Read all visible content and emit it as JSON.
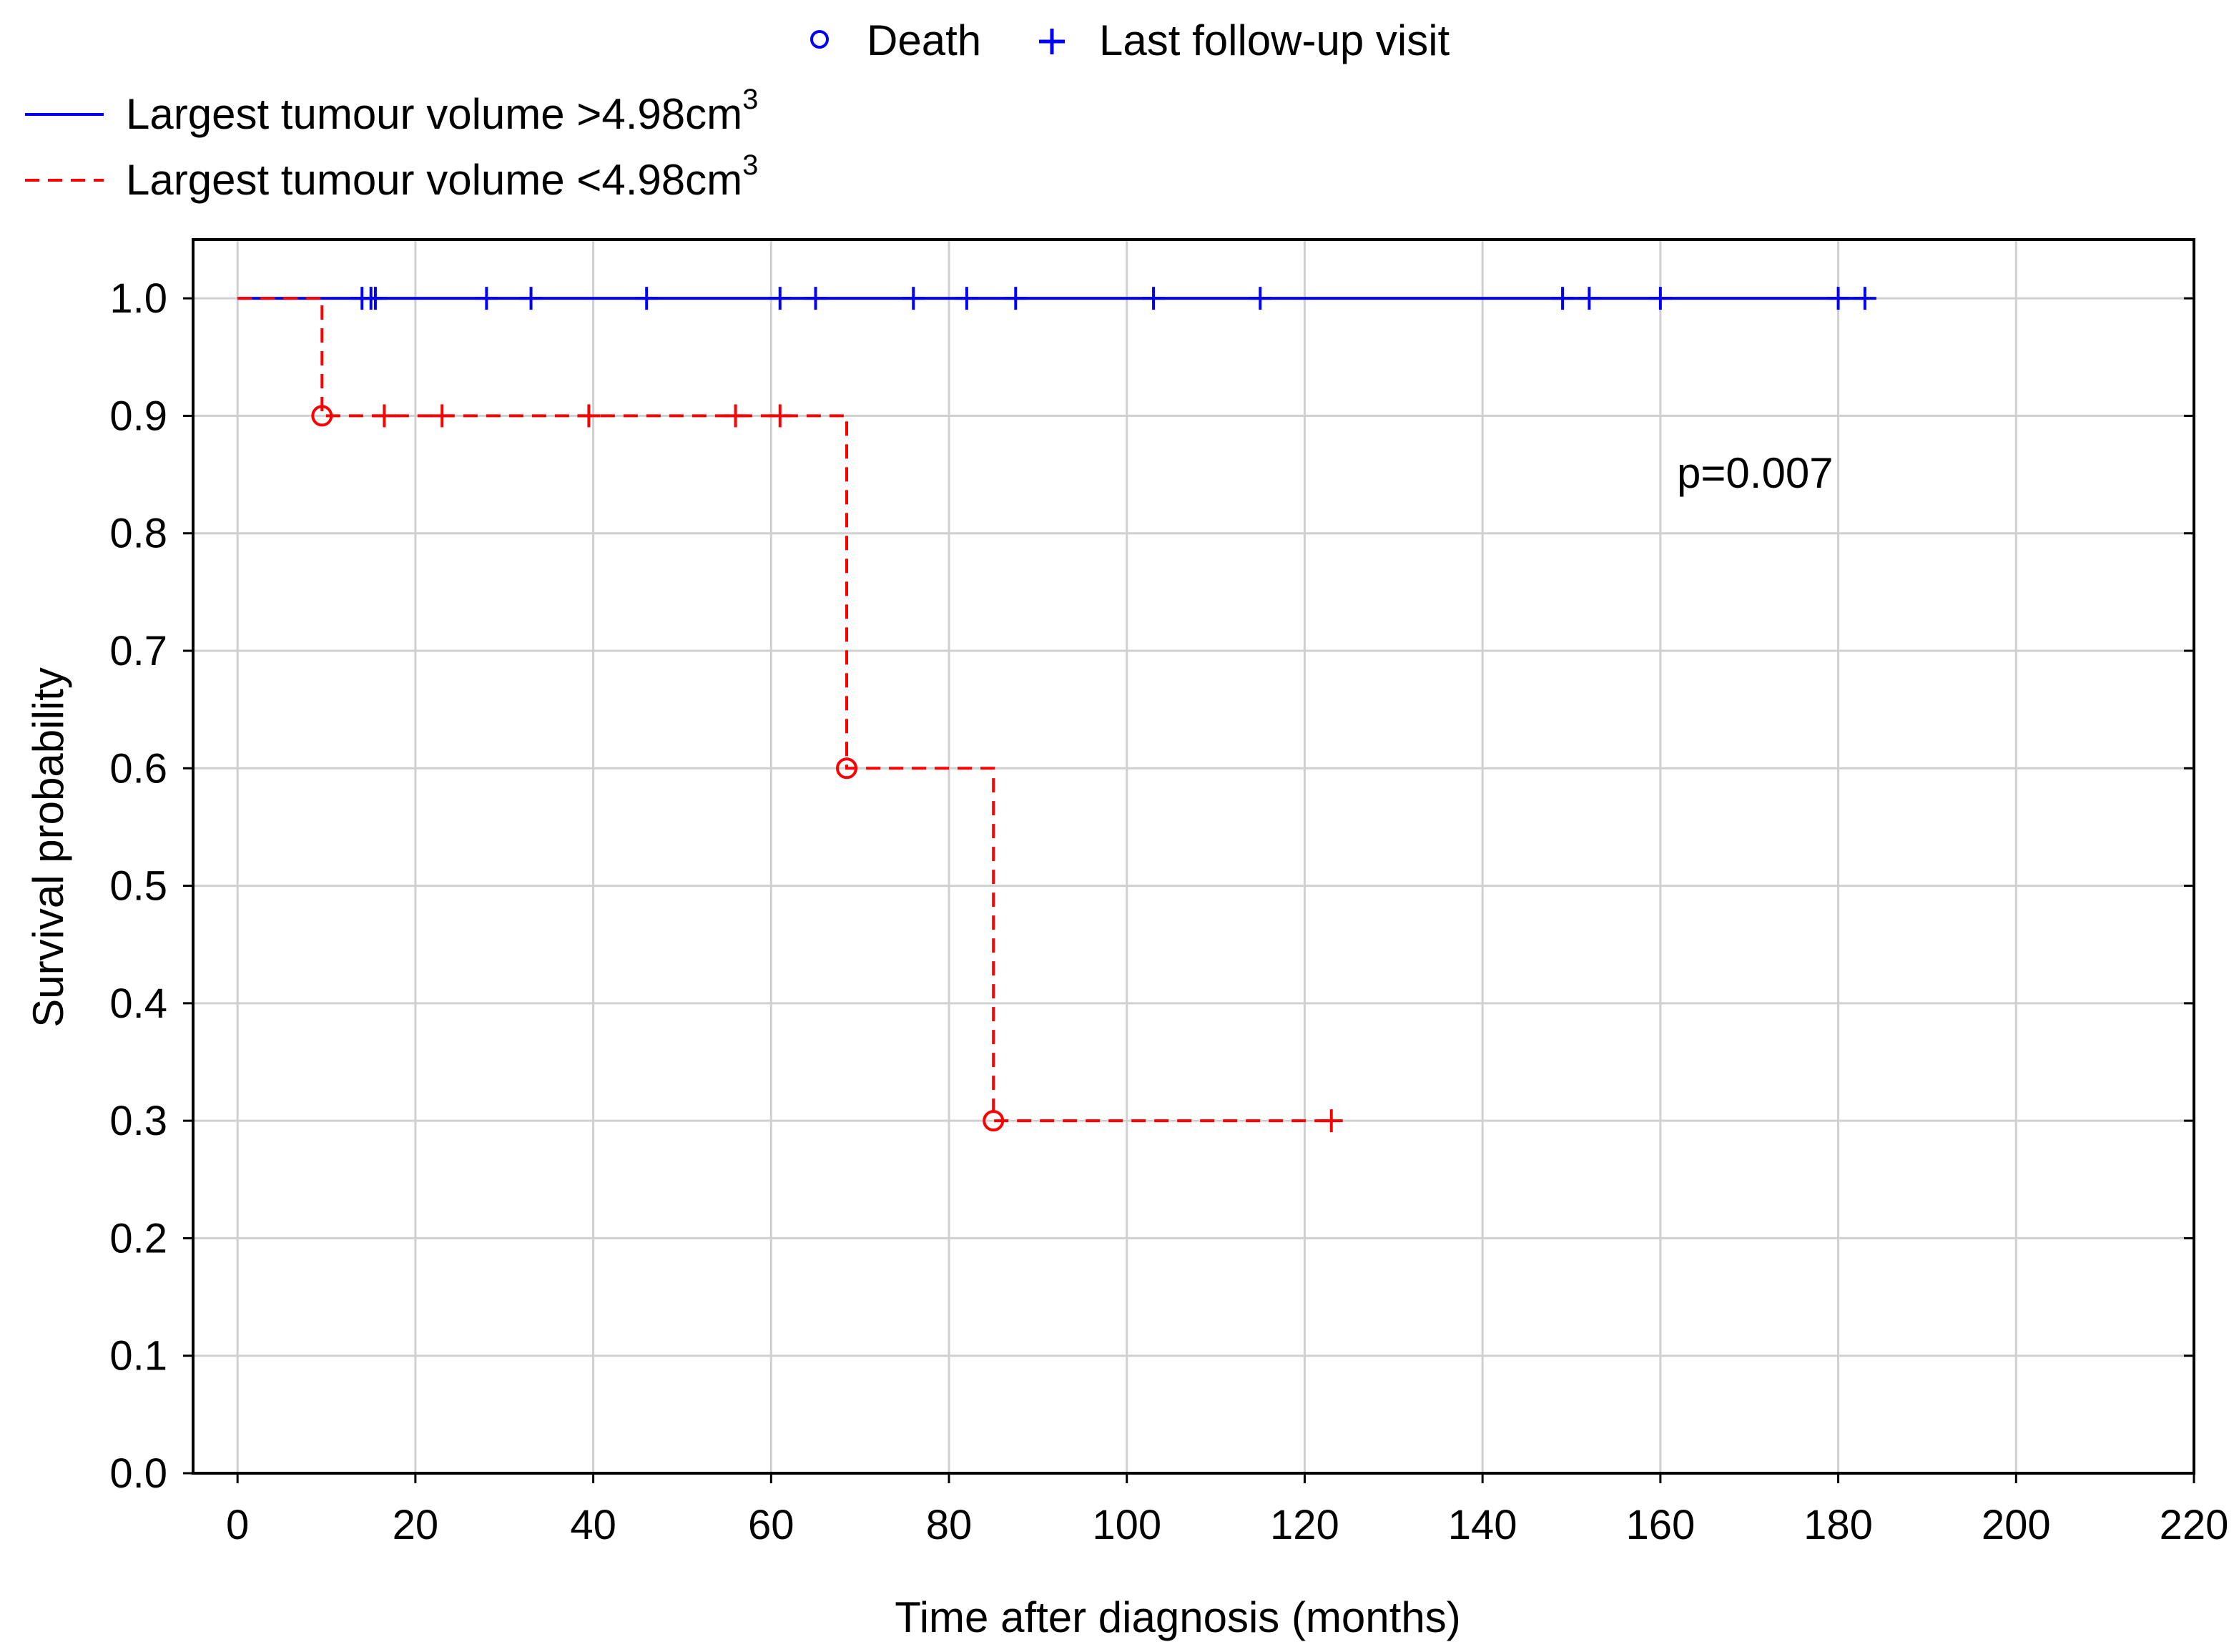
{
  "chart_data": {
    "type": "line",
    "xlabel": "Time after diagnosis (months)",
    "ylabel": "Survival probability",
    "xlim": [
      -5,
      220
    ],
    "ylim": [
      0,
      1.05
    ],
    "xticks": [
      "0",
      "20",
      "40",
      "60",
      "80",
      "100",
      "120",
      "140",
      "160",
      "180",
      "200",
      "220"
    ],
    "yticks": [
      "0.0",
      "0.1",
      "0.2",
      "0.3",
      "0.4",
      "0.5",
      "0.6",
      "0.7",
      "0.8",
      "0.9",
      "1.0"
    ],
    "grid": true,
    "annotation": "p=0.007",
    "marker_legend": [
      {
        "symbol": "circle",
        "label": "Death"
      },
      {
        "symbol": "plus",
        "label": "Last follow-up visit"
      }
    ],
    "series": [
      {
        "name": "Largest tumour volume >4.98cm",
        "superscript": "3",
        "color": "#0000ff",
        "style": "solid",
        "steps": [
          [
            0,
            1.0
          ],
          [
            183,
            1.0
          ]
        ],
        "deaths": [],
        "censored": [
          [
            14,
            1.0
          ],
          [
            15,
            1.0
          ],
          [
            15.5,
            1.0
          ],
          [
            28,
            1.0
          ],
          [
            33,
            1.0
          ],
          [
            46,
            1.0
          ],
          [
            61,
            1.0
          ],
          [
            65,
            1.0
          ],
          [
            76,
            1.0
          ],
          [
            82,
            1.0
          ],
          [
            87.5,
            1.0
          ],
          [
            103,
            1.0
          ],
          [
            115,
            1.0
          ],
          [
            149,
            1.0
          ],
          [
            152,
            1.0
          ],
          [
            160,
            1.0
          ],
          [
            180,
            1.0
          ],
          [
            183,
            1.0
          ]
        ]
      },
      {
        "name": "Largest tumour volume <4.98cm",
        "superscript": "3",
        "color": "#ff0000",
        "style": "dashed",
        "steps": [
          [
            0,
            1.0
          ],
          [
            9.5,
            1.0
          ],
          [
            9.5,
            0.9
          ],
          [
            68.5,
            0.9
          ],
          [
            68.5,
            0.6
          ],
          [
            85,
            0.6
          ],
          [
            85,
            0.3
          ],
          [
            123,
            0.3
          ]
        ],
        "deaths": [
          [
            9.5,
            0.9
          ],
          [
            68.5,
            0.6
          ],
          [
            85,
            0.3
          ]
        ],
        "censored": [
          [
            16.5,
            0.9
          ],
          [
            23,
            0.9
          ],
          [
            39.5,
            0.9
          ],
          [
            56,
            0.9
          ],
          [
            61,
            0.9
          ],
          [
            123,
            0.3
          ]
        ]
      }
    ]
  }
}
